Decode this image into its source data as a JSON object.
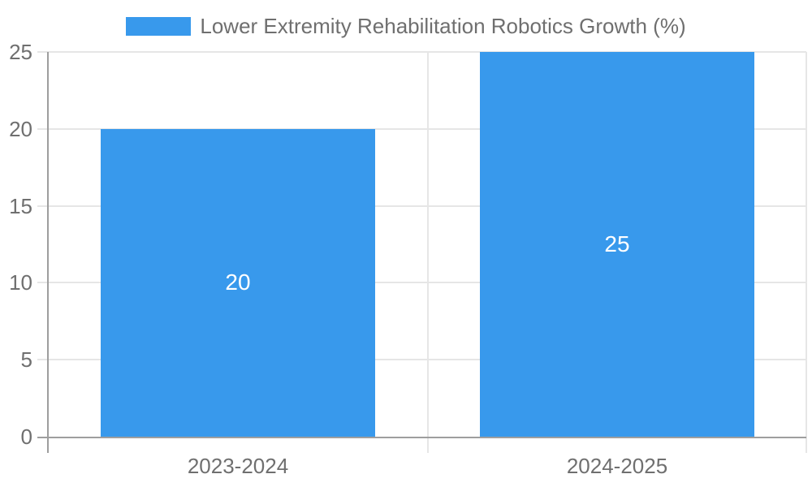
{
  "chart_data": {
    "type": "bar",
    "title": "",
    "categories": [
      "2023-2024",
      "2024-2025"
    ],
    "series": [
      {
        "name": "Lower Extremity Rehabilitation Robotics Growth (%)",
        "values": [
          20,
          25
        ]
      }
    ],
    "values": [
      20,
      25
    ],
    "bar_value_labels": [
      "20",
      "25"
    ],
    "xlabel": "",
    "ylabel": "",
    "ylim": [
      0,
      25
    ],
    "yticks": [
      0,
      5,
      10,
      15,
      20,
      25
    ],
    "grid": true,
    "legend_position": "top"
  },
  "legend": {
    "label": "Lower Extremity Rehabilitation Robotics Growth (%)",
    "swatch_color": "#3899EC"
  },
  "colors": {
    "bar": "#3899EC",
    "bar_value_label": "#FFFFFF",
    "gridline": "#E6E6E6",
    "axis_line": "#9E9E9E",
    "tick_label": "#6F6F6F",
    "legend_label": "#6F6F6F",
    "background": "#FFFFFF"
  }
}
